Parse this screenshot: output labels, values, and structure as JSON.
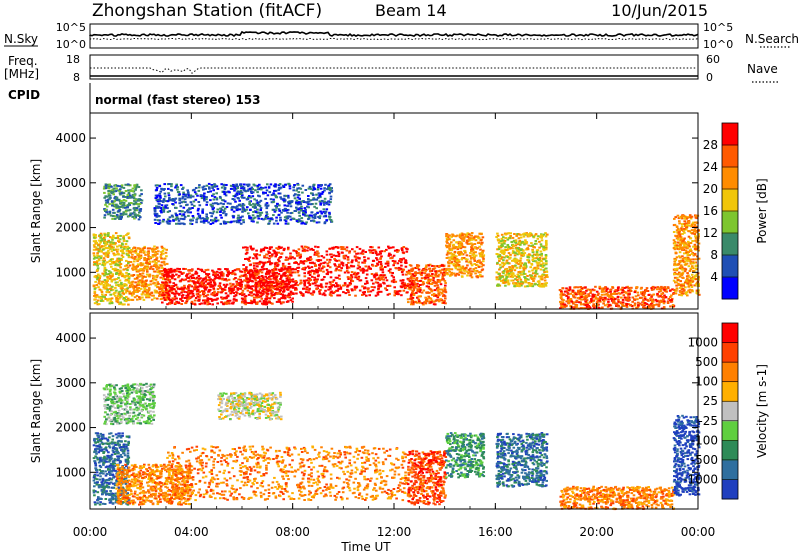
{
  "header": {
    "title": "Zhongshan Station (fitACF)",
    "beam": "Beam 14",
    "date": "10/Jun/2015"
  },
  "nsky_panel": {
    "left_label": "N.Sky",
    "right_label": "N.Search",
    "left_ticks": [
      "10^5",
      "10^0"
    ],
    "right_ticks": [
      "10^5",
      "10^0"
    ]
  },
  "freq_panel": {
    "left_label_1": "Freq.",
    "left_label_2": "[MHz]",
    "right_label": "Nave",
    "left_ticks": [
      "18",
      "8"
    ],
    "right_ticks": [
      "60",
      "0"
    ]
  },
  "cpid": {
    "label": "CPID",
    "text": "normal (fast stereo) 153"
  },
  "chart_data": [
    {
      "type": "heatmap",
      "xlabel": "Time UT",
      "ylabel": "Slant Range [km]",
      "x_ticks": [
        "00:00",
        "04:00",
        "08:00",
        "12:00",
        "16:00",
        "20:00",
        "00:00"
      ],
      "xlim_hours": [
        0,
        24
      ],
      "y_ticks": [
        1000,
        2000,
        3000,
        4000
      ],
      "ylim_km": [
        180,
        4560
      ],
      "colorbar": {
        "label": "Power [dB]",
        "ticks": [
          "4",
          "8",
          "12",
          "16",
          "20",
          "24",
          "28"
        ],
        "colors": [
          "#0000ff",
          "#1f4fb5",
          "#3a8a6a",
          "#7dc62f",
          "#f0c60a",
          "#ff8c00",
          "#ff5a00",
          "#ff0000"
        ]
      },
      "echo_regions": [
        {
          "t0": 0.1,
          "t1": 1.5,
          "r0": 300,
          "r1": 1900,
          "level": 4
        },
        {
          "t0": 1.5,
          "t1": 3.0,
          "r0": 400,
          "r1": 1600,
          "level": 5
        },
        {
          "t0": 2.8,
          "t1": 8.0,
          "r0": 300,
          "r1": 1100,
          "level": 7
        },
        {
          "t0": 6.0,
          "t1": 12.5,
          "r0": 500,
          "r1": 1600,
          "level": 7
        },
        {
          "t0": 12.5,
          "t1": 14.0,
          "r0": 300,
          "r1": 1200,
          "level": 6
        },
        {
          "t0": 14.0,
          "t1": 15.5,
          "r0": 900,
          "r1": 1900,
          "level": 5
        },
        {
          "t0": 16.0,
          "t1": 18.0,
          "r0": 700,
          "r1": 1900,
          "level": 4
        },
        {
          "t0": 18.5,
          "t1": 23.0,
          "r0": 200,
          "r1": 700,
          "level": 6
        },
        {
          "t0": 23.0,
          "t1": 24.0,
          "r0": 500,
          "r1": 2300,
          "level": 5
        },
        {
          "t0": 2.5,
          "t1": 9.5,
          "r0": 2100,
          "r1": 3000,
          "level": 1
        },
        {
          "t0": 0.5,
          "t1": 2.0,
          "r0": 2200,
          "r1": 3000,
          "level": 2
        }
      ]
    },
    {
      "type": "heatmap",
      "xlabel": "Time UT",
      "ylabel": "Slant Range [km]",
      "x_ticks": [
        "00:00",
        "04:00",
        "08:00",
        "12:00",
        "16:00",
        "20:00",
        "00:00"
      ],
      "xlim_hours": [
        0,
        24
      ],
      "y_ticks": [
        1000,
        2000,
        3000,
        4000
      ],
      "ylim_km": [
        180,
        4560
      ],
      "colorbar": {
        "label": "Velocity [m s-1]",
        "ticks": [
          "1000",
          "500",
          "100",
          "25",
          "-25",
          "-100",
          "-500",
          "-1000"
        ],
        "colors": [
          "#1f3fbf",
          "#2f6f9f",
          "#2e8b57",
          "#5fcf3f",
          "#c0c0c0",
          "#ffb000",
          "#ff8000",
          "#ff4000",
          "#ff0000"
        ]
      },
      "echo_regions": [
        {
          "t0": 0.1,
          "t1": 1.5,
          "r0": 300,
          "r1": 1900,
          "level": 1
        },
        {
          "t0": 1.0,
          "t1": 4.0,
          "r0": 300,
          "r1": 1200,
          "level": 6
        },
        {
          "t0": 3.0,
          "t1": 12.5,
          "r0": 400,
          "r1": 1600,
          "level": 6
        },
        {
          "t0": 12.5,
          "t1": 14.0,
          "r0": 300,
          "r1": 1500,
          "level": 7
        },
        {
          "t0": 14.0,
          "t1": 15.5,
          "r0": 900,
          "r1": 1900,
          "level": 2
        },
        {
          "t0": 16.0,
          "t1": 18.0,
          "r0": 700,
          "r1": 1900,
          "level": 1
        },
        {
          "t0": 18.5,
          "t1": 23.0,
          "r0": 200,
          "r1": 700,
          "level": 6
        },
        {
          "t0": 23.0,
          "t1": 24.0,
          "r0": 500,
          "r1": 2300,
          "level": 0
        },
        {
          "t0": 5.0,
          "t1": 7.5,
          "r0": 2200,
          "r1": 2800,
          "level": 4
        },
        {
          "t0": 0.5,
          "t1": 2.5,
          "r0": 2100,
          "r1": 3000,
          "level": 3
        }
      ]
    }
  ]
}
